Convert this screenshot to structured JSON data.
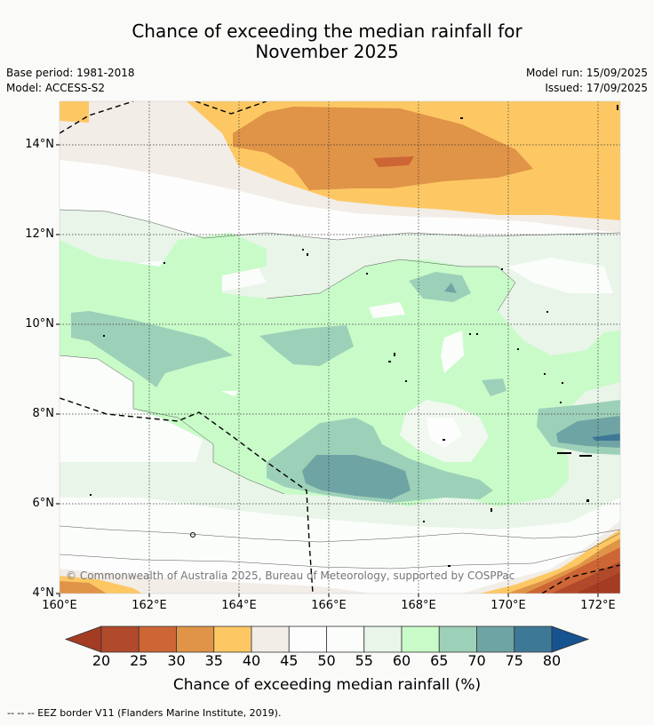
{
  "title_line1": "Chance of exceeding the median rainfall for",
  "title_line2": "November 2025",
  "base_period": "Base period: 1981-2018",
  "model": "Model: ACCESS-S2",
  "model_run": "Model run: 15/09/2025",
  "issued": "Issued: 17/09/2025",
  "copyright": "© Commonwealth of Australia 2025, Bureau of Meteorology, supported by COSPPac",
  "footnote": "--  --  -- EEZ border V11 (Flanders Marine Institute, 2019).",
  "colorbar": {
    "title": "Chance of exceeding median rainfall (%)",
    "ticks": [
      "20",
      "25",
      "30",
      "35",
      "40",
      "45",
      "50",
      "55",
      "60",
      "65",
      "70",
      "75",
      "80"
    ],
    "colors": [
      "#a33c22",
      "#b14a2a",
      "#cd6535",
      "#e09447",
      "#fdc864",
      "#f2ede7",
      "#fdfdfd",
      "#fbfdfb",
      "#e9f5e9",
      "#c9fbc9",
      "#9dd0b8",
      "#6fa4a5",
      "#3e7897",
      "#175291"
    ]
  },
  "map": {
    "lat_labels": [
      "14°N",
      "12°N",
      "10°N",
      "8°N",
      "6°N",
      "4°N"
    ],
    "lon_labels": [
      "160°E",
      "162°E",
      "164°E",
      "166°E",
      "168°E",
      "170°E",
      "172°E"
    ]
  }
}
